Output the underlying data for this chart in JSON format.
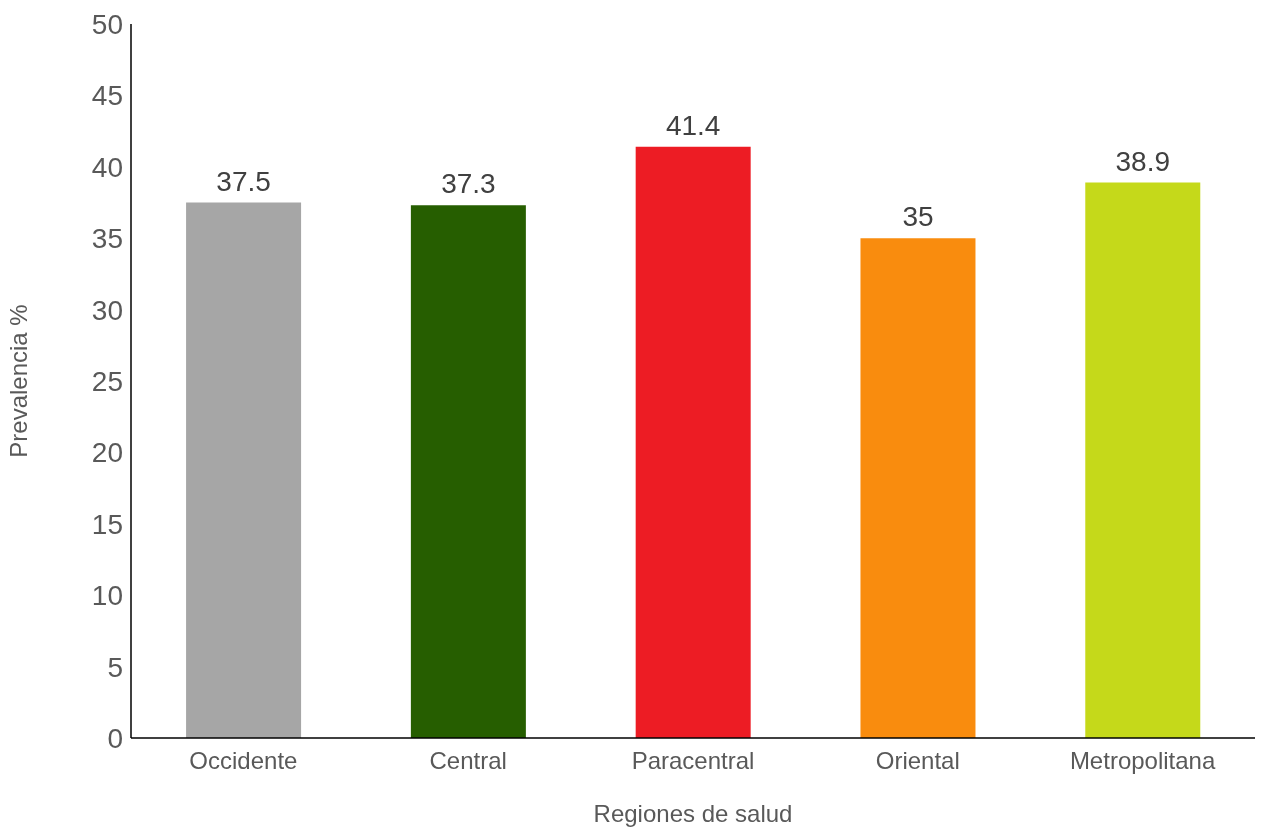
{
  "chart_data": {
    "type": "bar",
    "xlabel": "Regiones de salud",
    "ylabel": "Prevalencia %",
    "categories": [
      "Occidente",
      "Central",
      "Paracentral",
      "Oriental",
      "Metropolitana"
    ],
    "values": [
      37.5,
      37.3,
      41.4,
      35,
      38.9
    ],
    "colors": [
      "#a6a6a6",
      "#265e00",
      "#ed1c24",
      "#f98c0e",
      "#c5d91a"
    ],
    "ylim": [
      0,
      50
    ],
    "yticks": [
      0,
      5,
      10,
      15,
      20,
      25,
      30,
      35,
      40,
      45,
      50
    ],
    "grid": false,
    "data_labels": true
  }
}
